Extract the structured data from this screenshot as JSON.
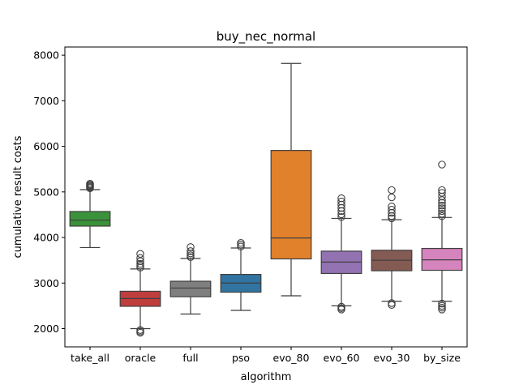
{
  "chart_data": {
    "type": "box",
    "title": "buy_nec_normal",
    "xlabel": "algorithm",
    "ylabel": "cumulative result costs",
    "ylim": [
      1600,
      8180
    ],
    "yticks": [
      2000,
      3000,
      4000,
      5000,
      6000,
      7000,
      8000
    ],
    "grid": false,
    "legend": "none",
    "categories": [
      "take_all",
      "oracle",
      "full",
      "pso",
      "evo_80",
      "evo_60",
      "evo_30",
      "by_size"
    ],
    "boxes": [
      {
        "category": "take_all",
        "color": "#3a923a",
        "whisker_low": 3780,
        "q1": 4250,
        "median": 4380,
        "q3": 4570,
        "whisker_high": 5050,
        "outliers": [
          5080,
          5100,
          5120,
          5140,
          5160,
          5180
        ]
      },
      {
        "category": "oracle",
        "color": "#c03d3e",
        "whisker_low": 2000,
        "q1": 2490,
        "median": 2660,
        "q3": 2820,
        "whisker_high": 3310,
        "outliers": [
          1910,
          1940,
          1970,
          3340,
          3380,
          3420,
          3480,
          3550,
          3640
        ]
      },
      {
        "category": "full",
        "color": "#7f7f7f",
        "whisker_low": 2320,
        "q1": 2700,
        "median": 2890,
        "q3": 3040,
        "whisker_high": 3540,
        "outliers": [
          3570,
          3610,
          3650,
          3700,
          3790
        ]
      },
      {
        "category": "pso",
        "color": "#3274a1",
        "whisker_low": 2400,
        "q1": 2800,
        "median": 3000,
        "q3": 3190,
        "whisker_high": 3770,
        "outliers": [
          3800,
          3840,
          3880
        ]
      },
      {
        "category": "evo_80",
        "color": "#e1812c",
        "whisker_low": 2720,
        "q1": 3530,
        "median": 3990,
        "q3": 5910,
        "whisker_high": 7820,
        "outliers": []
      },
      {
        "category": "evo_60",
        "color": "#9372b2",
        "whisker_low": 2500,
        "q1": 3210,
        "median": 3460,
        "q3": 3700,
        "whisker_high": 4420,
        "outliers": [
          2420,
          2450,
          2480,
          4450,
          4510,
          4580,
          4650,
          4720,
          4790,
          4860
        ]
      },
      {
        "category": "evo_30",
        "color": "#845b53",
        "whisker_low": 2600,
        "q1": 3270,
        "median": 3500,
        "q3": 3720,
        "whisker_high": 4390,
        "outliers": [
          2520,
          2560,
          4420,
          4470,
          4540,
          4610,
          4680,
          4880,
          5040
        ]
      },
      {
        "category": "by_size",
        "color": "#d684bd",
        "whisker_low": 2600,
        "q1": 3280,
        "median": 3510,
        "q3": 3760,
        "whisker_high": 4440,
        "outliers": [
          2420,
          2460,
          2500,
          2550,
          4470,
          4520,
          4580,
          4640,
          4700,
          4760,
          4820,
          4900,
          4980,
          5040,
          5600
        ]
      }
    ]
  }
}
